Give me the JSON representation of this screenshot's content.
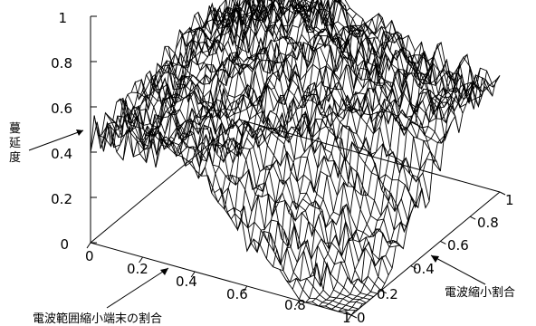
{
  "chart_data": {
    "type": "surface",
    "title": "",
    "zlabel": "蔓延度",
    "xlabel": "電波範囲縮小端末の割合",
    "ylabel": "電波縮小割合",
    "zlim": [
      0,
      1
    ],
    "xlim": [
      0,
      1
    ],
    "ylim": [
      0,
      1
    ],
    "z_ticks": [
      "0",
      "0.2",
      "0.4",
      "0.6",
      "0.8",
      "1"
    ],
    "x_ticks": [
      "0",
      "0.2",
      "0.4",
      "0.6",
      "0.8",
      "1"
    ],
    "y_ticks": [
      "0",
      "0.2",
      "0.4",
      "0.6",
      "0.8",
      "1"
    ],
    "surface_summary": {
      "plateau_level": 0.48,
      "peak_level": 0.95,
      "floor_level": 0.0,
      "floor_region": "large x, small y (near x=1, y=0)",
      "noise": "high, jagged wireframe"
    }
  }
}
